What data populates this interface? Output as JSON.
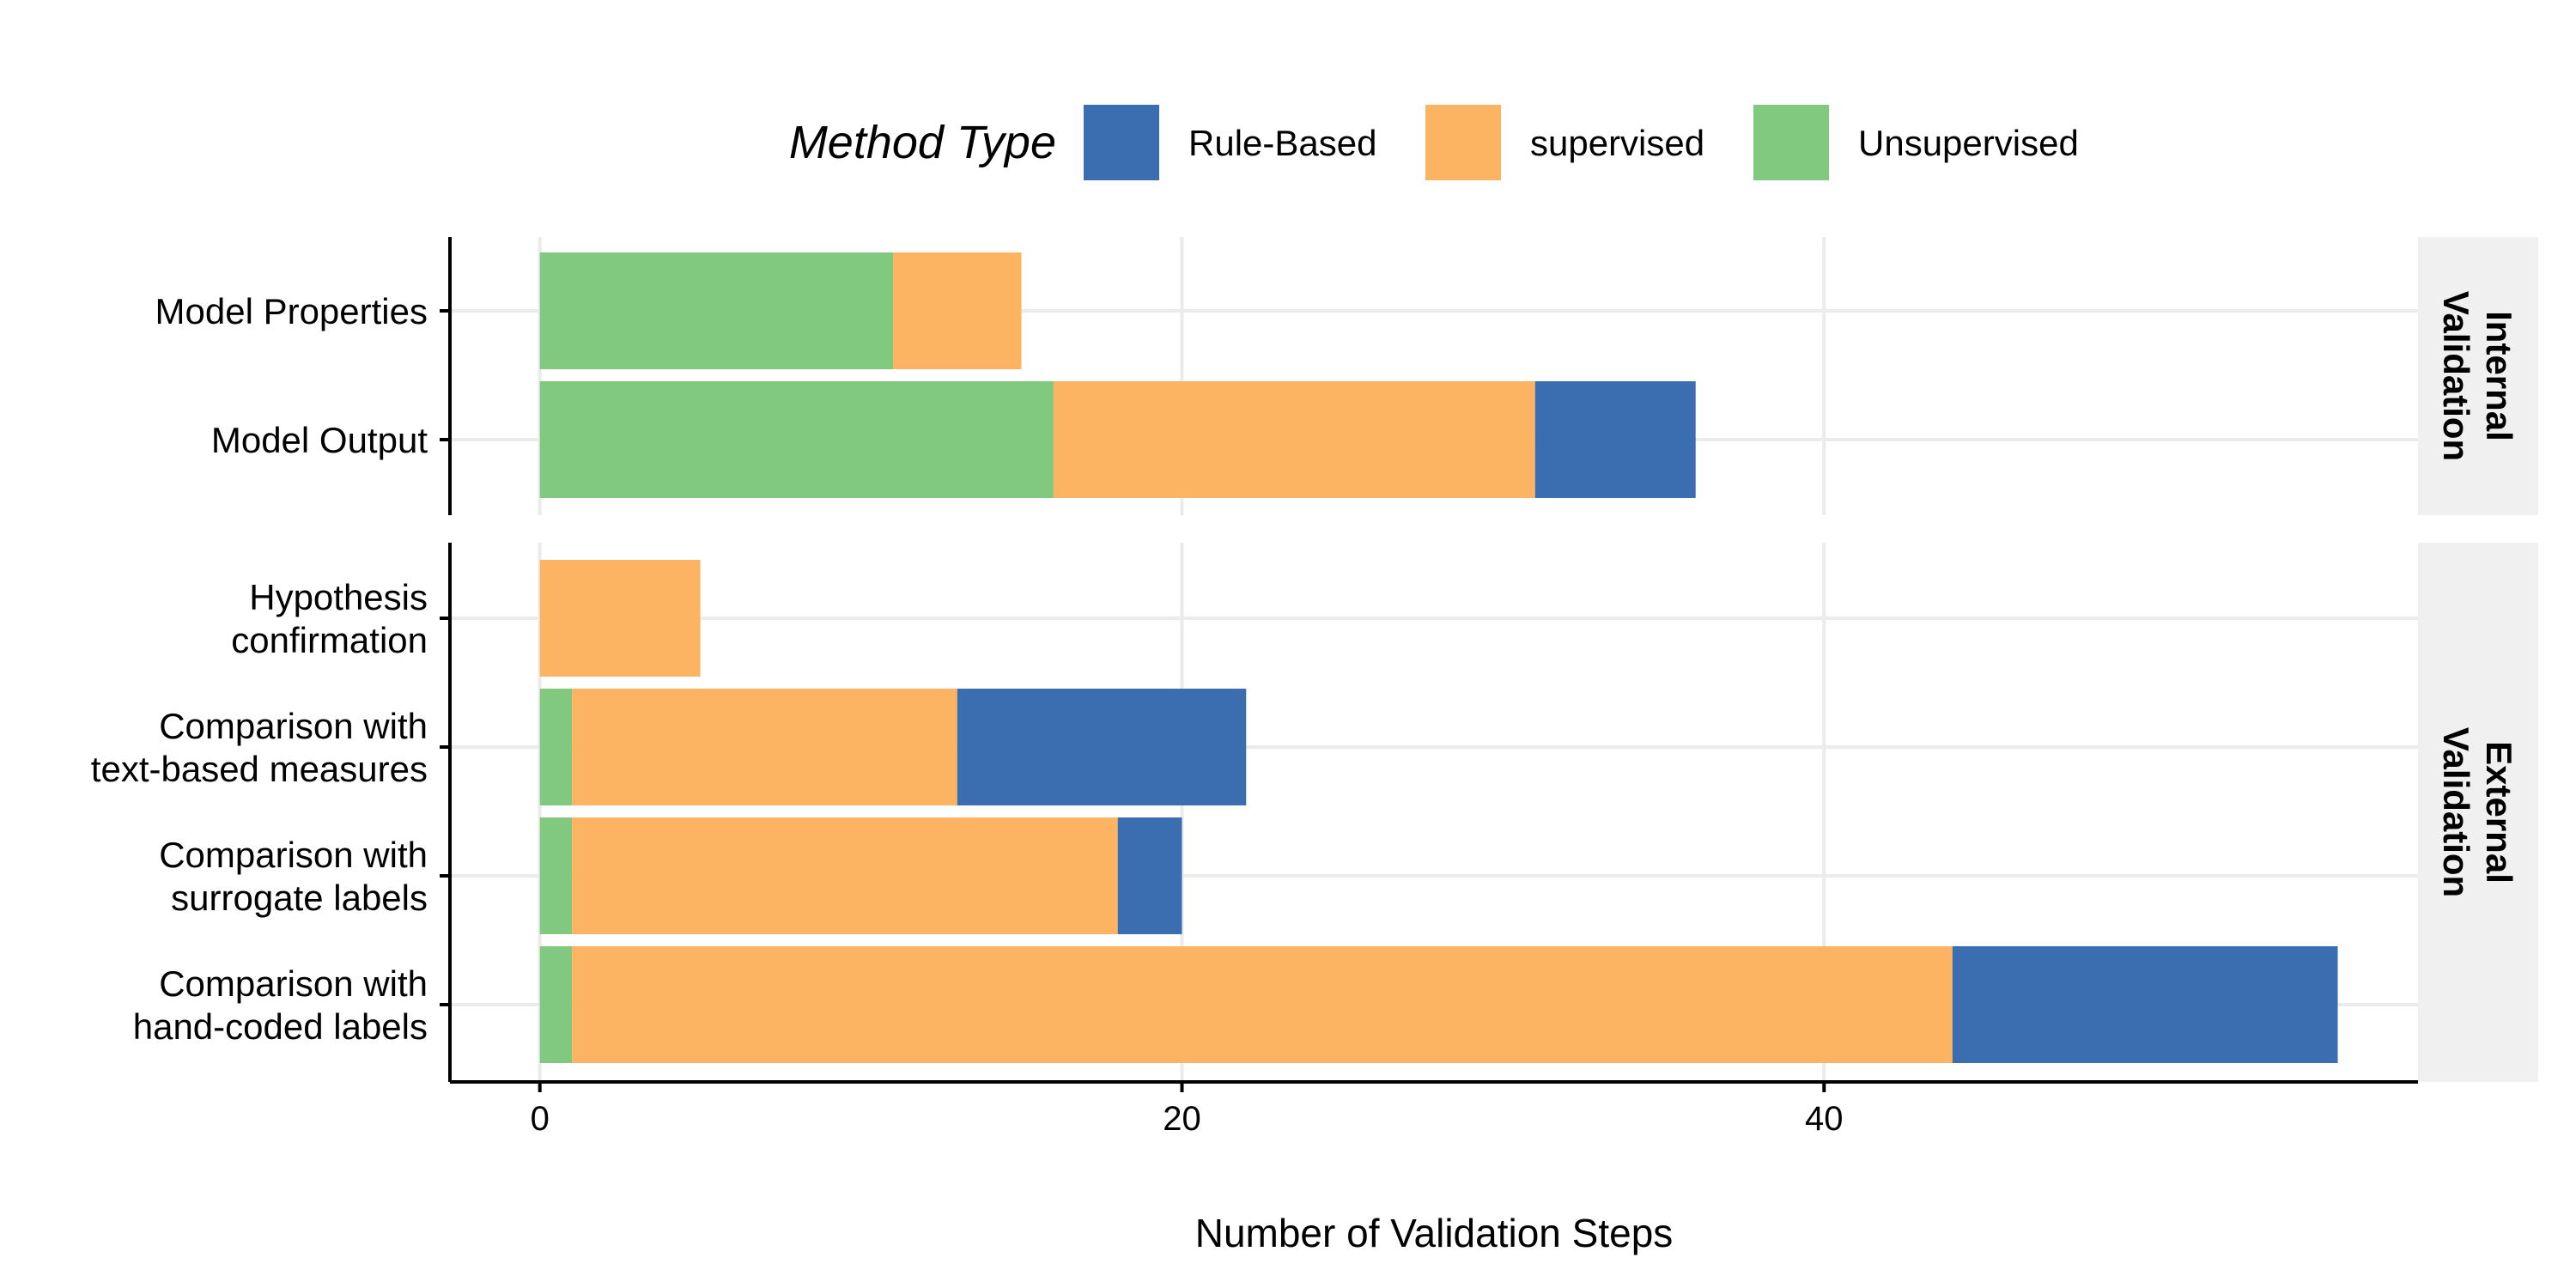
{
  "chart_data": {
    "type": "bar",
    "orientation": "horizontal",
    "stacked": true,
    "xlabel": "Number of Validation Steps",
    "xlim": [
      -2.8,
      58.5
    ],
    "xticks": [
      0,
      20,
      40
    ],
    "grid": true,
    "legend": {
      "title": "Method Type",
      "position": "top",
      "entries": [
        {
          "name": "Rule-Based",
          "color": "#3b6db1"
        },
        {
          "name": "supervised",
          "color": "#fcb462"
        },
        {
          "name": "Unsupervised",
          "color": "#80c97e"
        }
      ]
    },
    "stack_order": [
      "Unsupervised",
      "supervised",
      "Rule-Based"
    ],
    "panels": [
      {
        "strip_lines": [
          "Internal",
          "Validation"
        ],
        "categories": [
          {
            "label_lines": [
              "Model Properties"
            ],
            "values": {
              "Unsupervised": 11,
              "supervised": 4,
              "Rule-Based": 0
            }
          },
          {
            "label_lines": [
              "Model Output"
            ],
            "values": {
              "Unsupervised": 16,
              "supervised": 15,
              "Rule-Based": 5
            }
          }
        ]
      },
      {
        "strip_lines": [
          "External",
          "Validation"
        ],
        "categories": [
          {
            "label_lines": [
              "Hypothesis",
              "confirmation"
            ],
            "values": {
              "Unsupervised": 0,
              "supervised": 5,
              "Rule-Based": 0
            }
          },
          {
            "label_lines": [
              "Comparison with",
              "text-based measures"
            ],
            "values": {
              "Unsupervised": 1,
              "supervised": 12,
              "Rule-Based": 9
            }
          },
          {
            "label_lines": [
              "Comparison with",
              "surrogate labels"
            ],
            "values": {
              "Unsupervised": 1,
              "supervised": 17,
              "Rule-Based": 2
            }
          },
          {
            "label_lines": [
              "Comparison with",
              "hand-coded labels"
            ],
            "values": {
              "Unsupervised": 1,
              "supervised": 43,
              "Rule-Based": 12
            }
          }
        ]
      }
    ]
  }
}
